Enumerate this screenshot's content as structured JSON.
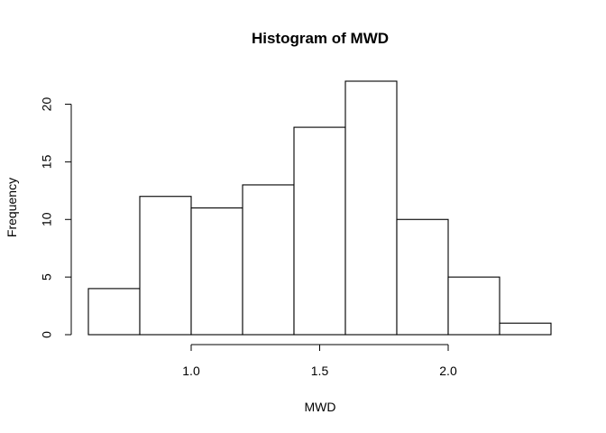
{
  "chart_data": {
    "type": "bar",
    "title": "Histogram of MWD",
    "xlabel": "MWD",
    "ylabel": "Frequency",
    "bins": [
      {
        "x0": 0.6,
        "x1": 0.8,
        "count": 4
      },
      {
        "x0": 0.8,
        "x1": 1.0,
        "count": 12
      },
      {
        "x0": 1.0,
        "x1": 1.2,
        "count": 11
      },
      {
        "x0": 1.2,
        "x1": 1.4,
        "count": 13
      },
      {
        "x0": 1.4,
        "x1": 1.6,
        "count": 18
      },
      {
        "x0": 1.6,
        "x1": 1.8,
        "count": 22
      },
      {
        "x0": 1.8,
        "x1": 2.0,
        "count": 10
      },
      {
        "x0": 2.0,
        "x1": 2.2,
        "count": 5
      },
      {
        "x0": 2.2,
        "x1": 2.4,
        "count": 1
      }
    ],
    "xlim": [
      0.6,
      2.4
    ],
    "ylim": [
      0,
      22
    ],
    "x_ticks": [
      1.0,
      1.5,
      2.0
    ],
    "x_tick_labels": [
      "1.0",
      "1.5",
      "2.0"
    ],
    "y_ticks": [
      0,
      5,
      10,
      15,
      20
    ],
    "y_tick_labels": [
      "0",
      "5",
      "10",
      "15",
      "20"
    ],
    "grid": false,
    "legend": "none"
  }
}
